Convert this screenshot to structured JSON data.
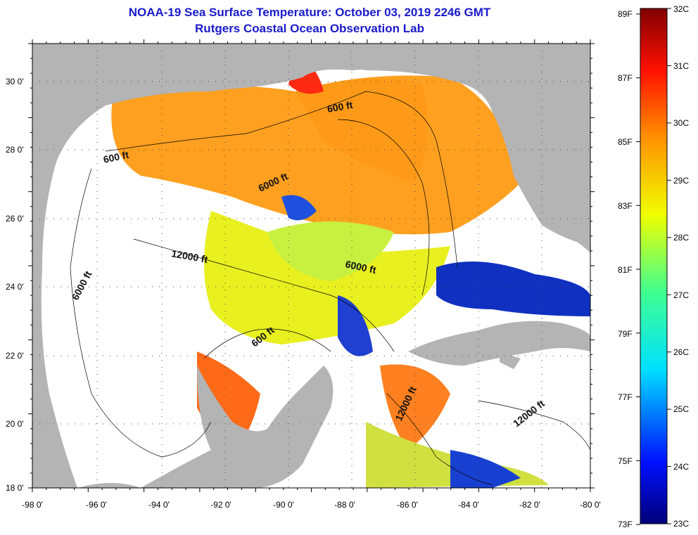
{
  "title": {
    "line1": "NOAA-19 Sea Surface Temperature:  October 03, 2019 2246 GMT",
    "line2": "Rutgers Coastal Ocean Observation Lab"
  },
  "axes": {
    "x_ticks": [
      "-98 0'",
      "-96 0'",
      "-94 0'",
      "-92 0'",
      "-90 0'",
      "-88 0'",
      "-86 0'",
      "-84 0'",
      "-82 0'",
      "-80 0'"
    ],
    "y_ticks": [
      "30 0'",
      "28 0'",
      "26 0'",
      "24 0'",
      "22 0'",
      "20 0'",
      "18 0'"
    ]
  },
  "contour_labels": [
    {
      "text": "600 ft"
    },
    {
      "text": "600 ft"
    },
    {
      "text": "6000 ft"
    },
    {
      "text": "12000 ft"
    },
    {
      "text": "6000 ft"
    },
    {
      "text": "6000 ft"
    },
    {
      "text": "600 ft"
    },
    {
      "text": "12000 ft"
    },
    {
      "text": "12000 ft"
    }
  ],
  "colorbar": {
    "fahrenheit": [
      "89F",
      "87F",
      "85F",
      "83F",
      "81F",
      "79F",
      "77F",
      "75F",
      "73F"
    ],
    "celsius": [
      "32C",
      "31C",
      "30C",
      "29C",
      "28C",
      "27C",
      "26C",
      "25C",
      "24C",
      "23C"
    ]
  },
  "colors": {
    "land": "#b4b4b4",
    "cloud": "#ffffff",
    "title": "#1a1acc"
  }
}
